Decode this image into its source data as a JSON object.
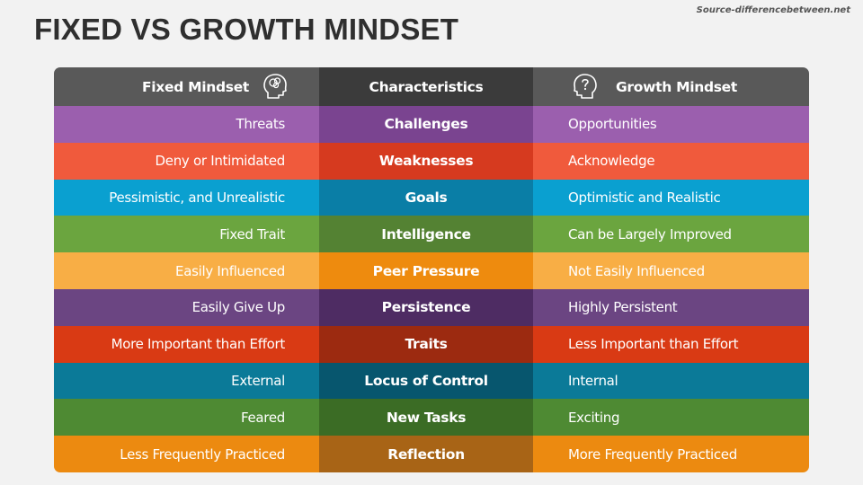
{
  "source": "Source-differencebetween.net",
  "title": "FIXED VS GROWTH MINDSET",
  "header": {
    "fixed": "Fixed Mindset",
    "characteristics": "Characteristics",
    "growth": "Growth Mindset",
    "fixed_icon": "head-thought-icon",
    "growth_icon": "head-question-icon"
  },
  "rows": [
    {
      "fixed": "Threats",
      "characteristic": "Challenges",
      "growth": "Opportunities",
      "color_side": "#9b5fae",
      "color_mid": "#7a4490"
    },
    {
      "fixed": "Deny or Intimidated",
      "characteristic": "Weaknesses",
      "growth": "Acknowledge",
      "color_side": "#f05a3c",
      "color_mid": "#d63a1f"
    },
    {
      "fixed": "Pessimistic, and Unrealistic",
      "characteristic": "Goals",
      "growth": "Optimistic and Realistic",
      "color_side": "#0aa0d0",
      "color_mid": "#0a7ea6"
    },
    {
      "fixed": "Fixed Trait",
      "characteristic": "Intelligence",
      "growth": "Can be Largely Improved",
      "color_side": "#6ba53f",
      "color_mid": "#548233"
    },
    {
      "fixed": "Easily Influenced",
      "characteristic": "Peer Pressure",
      "growth": "Not Easily Influenced",
      "color_side": "#f8ae45",
      "color_mid": "#ee8b0e"
    },
    {
      "fixed": "Easily Give Up",
      "characteristic": "Persistence",
      "growth": "Highly Persistent",
      "color_side": "#6b4582",
      "color_mid": "#4e2c63"
    },
    {
      "fixed": "More Important than Effort",
      "characteristic": "Traits",
      "growth": "Less Important than Effort",
      "color_side": "#d93a14",
      "color_mid": "#9c2a10"
    },
    {
      "fixed": "External",
      "characteristic": "Locus of Control",
      "growth": "Internal",
      "color_side": "#0b7a98",
      "color_mid": "#07566e"
    },
    {
      "fixed": "Feared",
      "characteristic": "New Tasks",
      "growth": "Exciting",
      "color_side": "#4e8a33",
      "color_mid": "#3b6c25"
    },
    {
      "fixed": "Less Frequently Practiced",
      "characteristic": "Reflection",
      "growth": "More Frequently Practiced",
      "color_side": "#ec8a10",
      "color_mid": "#a86416"
    }
  ]
}
